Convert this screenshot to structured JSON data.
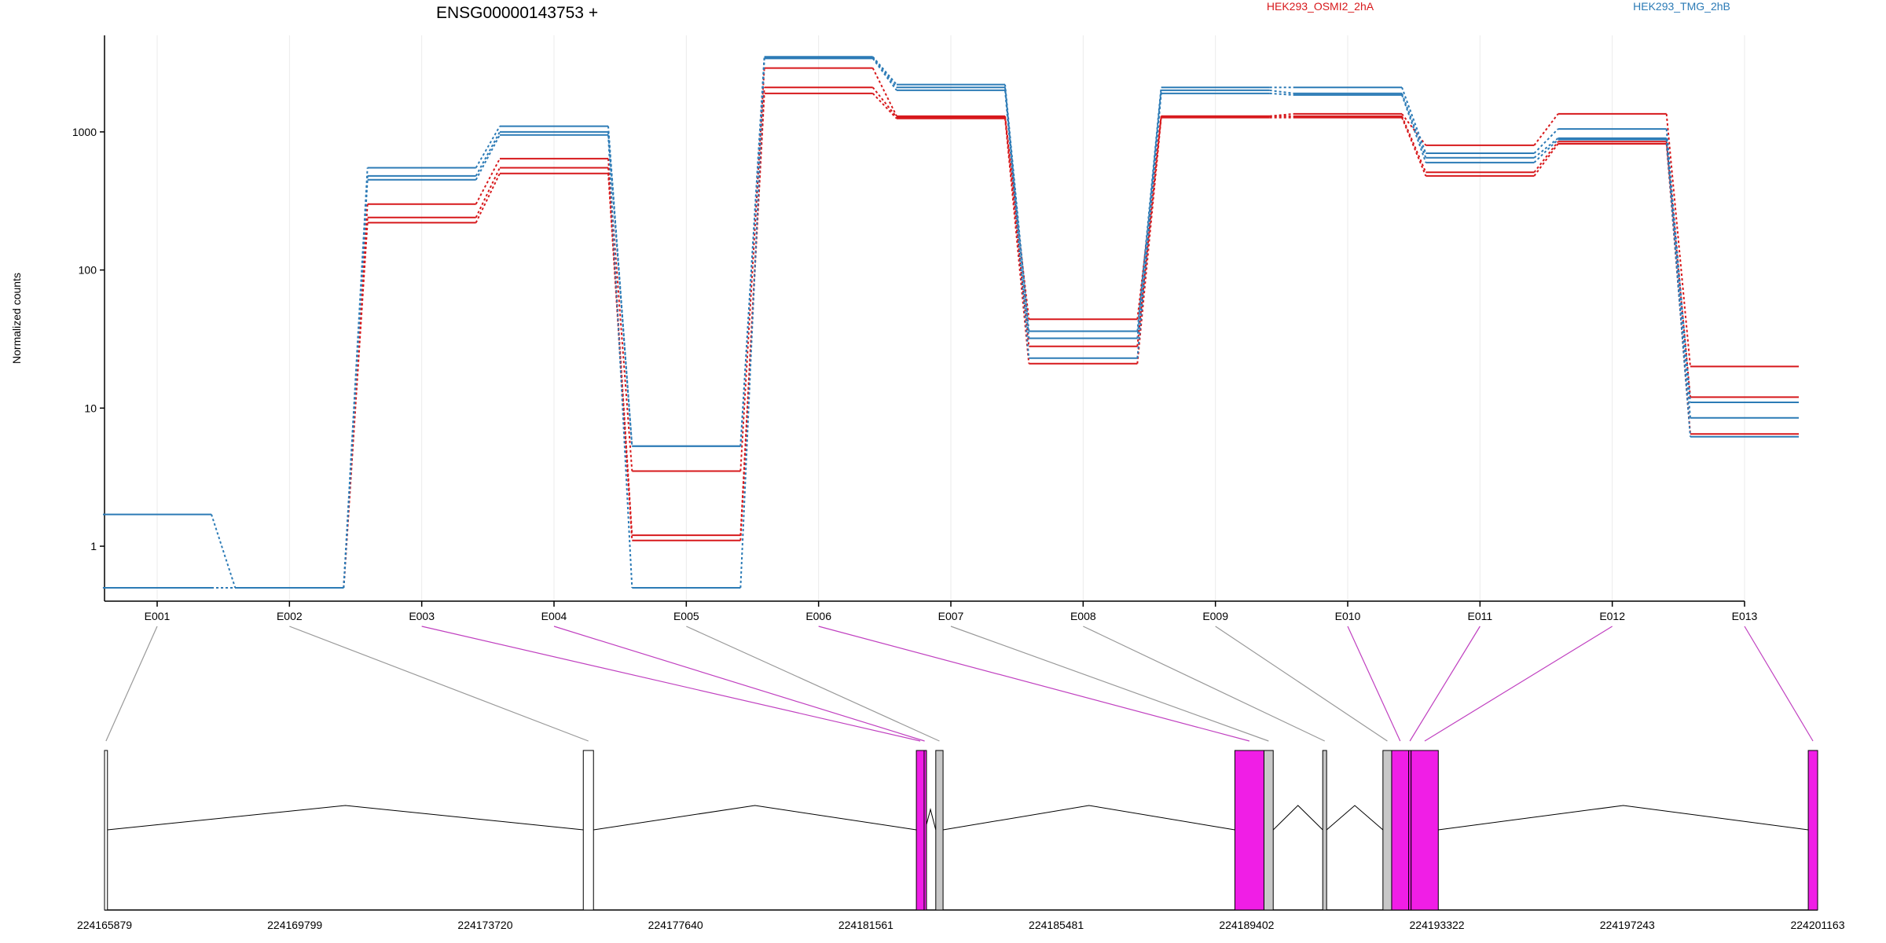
{
  "chart_data": {
    "type": "line",
    "title": "ENSG00000143753 +",
    "ylabel": "Normalized counts",
    "yscale": "log",
    "ylim": [
      0.4,
      5000
    ],
    "yticks": [
      1,
      10,
      100,
      1000
    ],
    "ytick_labels": [
      "1",
      "10",
      "100",
      "1000"
    ],
    "categories": [
      "E001",
      "E002",
      "E003",
      "E004",
      "E005",
      "E006",
      "E007",
      "E008",
      "E009",
      "E010",
      "E011",
      "E012",
      "E013"
    ],
    "colors": {
      "red": "#d7191c",
      "blue": "#2c7bb6",
      "magenta": "#f01ee6",
      "gray": "#c8c8c8",
      "connector_gray": "#999999",
      "connector_magenta": "#c040c0"
    },
    "series": [
      {
        "name": "HEK293_OSMI2_2hA",
        "color": "#d7191c",
        "values": [
          0.5,
          0.5,
          300,
          640,
          3.5,
          2900,
          1300,
          44,
          1300,
          1350,
          800,
          1350,
          20
        ]
      },
      {
        "color": "#d7191c",
        "values": [
          0.5,
          0.5,
          240,
          550,
          1.2,
          2100,
          1280,
          28,
          1300,
          1300,
          510,
          850,
          12
        ]
      },
      {
        "color": "#d7191c",
        "values": [
          0.5,
          0.5,
          220,
          500,
          1.1,
          1900,
          1250,
          21,
          1270,
          1270,
          480,
          820,
          6.5
        ]
      },
      {
        "name": "HEK293_TMG_2hB",
        "color": "#2c7bb6",
        "values": [
          1.7,
          0.5,
          550,
          1100,
          5.3,
          3500,
          2200,
          36,
          2100,
          2100,
          700,
          1050,
          11
        ]
      },
      {
        "color": "#2c7bb6",
        "values": [
          0.5,
          0.5,
          480,
          1000,
          5.3,
          3450,
          2100,
          32,
          2000,
          1900,
          650,
          900,
          8.5
        ]
      },
      {
        "color": "#2c7bb6",
        "values": [
          0.5,
          0.5,
          450,
          950,
          0.5,
          3400,
          2000,
          23,
          1900,
          1850,
          600,
          880,
          6.2
        ]
      }
    ],
    "genomic_axis": {
      "tick_labels": [
        "224165879",
        "224169799",
        "224173720",
        "224177640",
        "224181561",
        "224185481",
        "224189402",
        "224193322",
        "224197243",
        "224201163"
      ],
      "exons": [
        {
          "label": "E001",
          "start": 224165879,
          "end": 224165940,
          "type": "plain",
          "connected_bin": "E001"
        },
        {
          "label": "E002",
          "start": 224175740,
          "end": 224175950,
          "type": "plain",
          "connected_bin": "E002"
        },
        {
          "label": "E003",
          "start": 224182600,
          "end": 224182760,
          "type": "magenta",
          "connected_bin": "E003"
        },
        {
          "label": "E004",
          "start": 224182760,
          "end": 224182780,
          "type": "magenta",
          "connected_bin": "E004"
        },
        {
          "label": "E005",
          "start": 224183000,
          "end": 224183150,
          "type": "gray",
          "connected_bin": "E005"
        },
        {
          "label": "E006",
          "start": 224189160,
          "end": 224189760,
          "type": "magenta",
          "connected_bin": "E006"
        },
        {
          "label": "E007",
          "start": 224189760,
          "end": 224189950,
          "type": "gray",
          "connected_bin": "E007"
        },
        {
          "label": "E008",
          "start": 224190970,
          "end": 224191050,
          "type": "gray",
          "connected_bin": "E008"
        },
        {
          "label": "E009",
          "start": 224192210,
          "end": 224192390,
          "type": "gray",
          "connected_bin": "E009"
        },
        {
          "label": "E010",
          "start": 224192390,
          "end": 224192740,
          "type": "magenta",
          "connected_bin": "E010"
        },
        {
          "label": "E011",
          "start": 224192740,
          "end": 224192790,
          "type": "magenta",
          "connected_bin": "E011"
        },
        {
          "label": "E012",
          "start": 224192790,
          "end": 224193350,
          "type": "magenta",
          "connected_bin": "E012"
        },
        {
          "label": "E013",
          "start": 224200970,
          "end": 224201163,
          "type": "magenta",
          "connected_bin": "E013"
        }
      ],
      "introns": [
        [
          224165940,
          224175740
        ],
        [
          224175950,
          224182600
        ],
        [
          224182780,
          224183000
        ],
        [
          224183150,
          224189160
        ],
        [
          224189950,
          224190970
        ],
        [
          224191050,
          224192210
        ],
        [
          224193350,
          224200970
        ]
      ]
    }
  }
}
